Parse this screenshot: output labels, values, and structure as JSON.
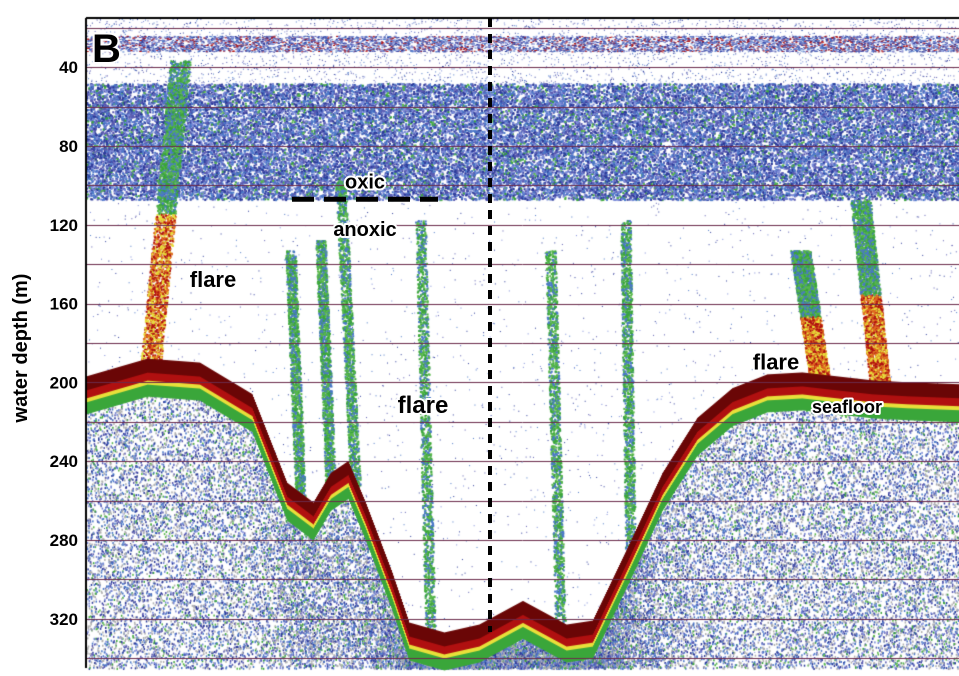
{
  "chart_data": {
    "type": "heatmap",
    "panel_label": "B",
    "ylabel": "water depth (m)",
    "ylim": [
      345,
      15
    ],
    "yticks": [
      40,
      80,
      120,
      160,
      200,
      240,
      280,
      320
    ],
    "grid": "horizontal lines every 20 m",
    "colormap": [
      "#2b3a9a",
      "#4a78c8",
      "#3aa63a",
      "#e8e03a",
      "#e06a20",
      "#b01010",
      "#6a0606"
    ],
    "gridline_color": "#6a2a4a",
    "oxic_anoxic_interface_depth_m": 107,
    "seafloor_profile": {
      "x_fraction": [
        0,
        0.07,
        0.13,
        0.19,
        0.23,
        0.26,
        0.28,
        0.3,
        0.32,
        0.35,
        0.37,
        0.41,
        0.45,
        0.5,
        0.55,
        0.58,
        0.62,
        0.66,
        0.7,
        0.74,
        0.78,
        0.82,
        0.86,
        0.9,
        0.94,
        1.0
      ],
      "depth_m": [
        201,
        192,
        194,
        210,
        255,
        265,
        250,
        244,
        265,
        300,
        326,
        331,
        327,
        315,
        327,
        325,
        288,
        250,
        222,
        207,
        200,
        199,
        201,
        203,
        204,
        205
      ]
    },
    "annotations": [
      {
        "text": "oxic",
        "depth_m": 98
      },
      {
        "text": "anoxic",
        "depth_m": 122
      },
      {
        "text": "flare",
        "depth_m": 148
      },
      {
        "text": "flare",
        "depth_m": 212
      },
      {
        "text": "flare",
        "depth_m": 190
      },
      {
        "text": "seafloor",
        "depth_m": 212
      }
    ]
  }
}
